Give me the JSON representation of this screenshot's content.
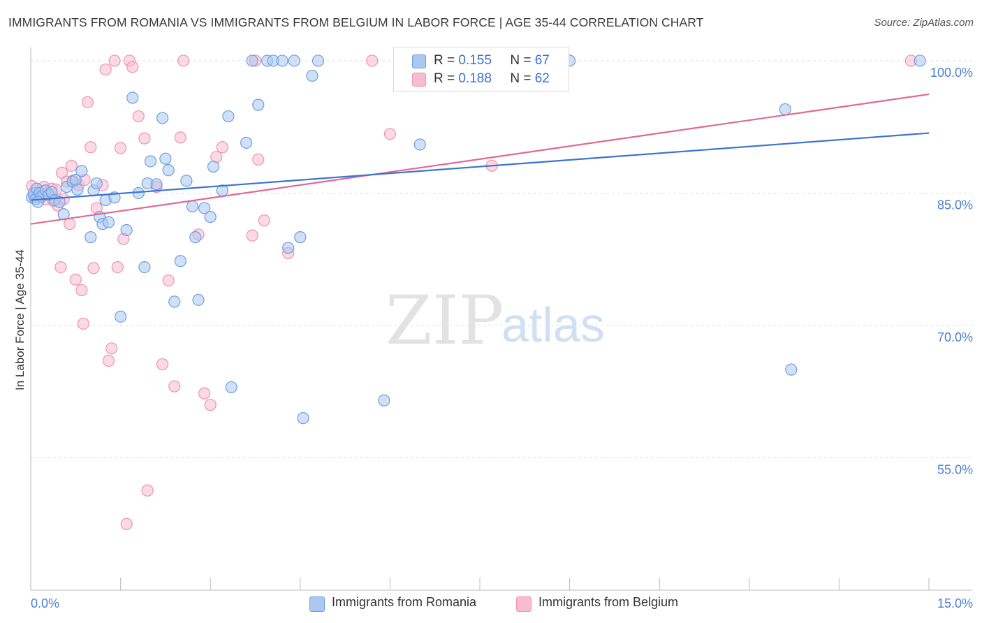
{
  "title": "IMMIGRANTS FROM ROMANIA VS IMMIGRANTS FROM BELGIUM IN LABOR FORCE | AGE 35-44 CORRELATION CHART",
  "source": "Source: ZipAtlas.com",
  "watermark": {
    "zip": "ZIP",
    "atlas": "atlas"
  },
  "legend": {
    "romania": {
      "r_label": "R =",
      "r_value": "0.155",
      "n_label": "N =",
      "n_value": "67"
    },
    "belgium": {
      "r_label": "R =",
      "r_value": "0.188",
      "n_label": "N =",
      "n_value": "62"
    }
  },
  "colors": {
    "romania_fill": "#aac8f0",
    "romania_stroke": "#6d9ee0",
    "romania_line": "#3a74d0",
    "belgium_fill": "#f7bcd0",
    "belgium_stroke": "#ee92b0",
    "belgium_line": "#e06896",
    "tick_text": "#4a7fd0",
    "grid": "#dcdcdc"
  },
  "chart_data": {
    "type": "scatter",
    "title": "IMMIGRANTS FROM ROMANIA VS IMMIGRANTS FROM BELGIUM IN LABOR FORCE | AGE 35-44 CORRELATION CHART",
    "xlabel": "",
    "ylabel": "In Labor Force | Age 35-44",
    "xlim": [
      0,
      15
    ],
    "ylim": [
      40,
      101.5
    ],
    "x_tick_labels": [
      {
        "value": 0,
        "label": "0.0%"
      },
      {
        "value": 15,
        "label": "15.0%"
      }
    ],
    "y_tick_labels": [
      {
        "value": 100,
        "label": "100.0%"
      },
      {
        "value": 85,
        "label": "85.0%"
      },
      {
        "value": 70,
        "label": "70.0%"
      },
      {
        "value": 55,
        "label": "55.0%"
      }
    ],
    "series": [
      {
        "name": "Immigrants from Romania",
        "r": 0.155,
        "n": 67,
        "trend": {
          "x": [
            0,
            15
          ],
          "y": [
            84.2,
            91.8
          ]
        },
        "points": [
          [
            0.02,
            84.5
          ],
          [
            0.05,
            85.0
          ],
          [
            0.08,
            84.3
          ],
          [
            0.1,
            85.5
          ],
          [
            0.15,
            85.0
          ],
          [
            0.18,
            84.6
          ],
          [
            0.25,
            85.3
          ],
          [
            0.3,
            84.8
          ],
          [
            0.35,
            85.1
          ],
          [
            0.4,
            84.2
          ],
          [
            0.48,
            84.0
          ],
          [
            0.55,
            82.6
          ],
          [
            0.6,
            85.7
          ],
          [
            0.7,
            86.3
          ],
          [
            0.75,
            86.5
          ],
          [
            0.78,
            85.4
          ],
          [
            0.85,
            87.5
          ],
          [
            1.0,
            80.0
          ],
          [
            1.05,
            85.3
          ],
          [
            1.1,
            86.1
          ],
          [
            1.15,
            82.3
          ],
          [
            1.2,
            81.5
          ],
          [
            1.25,
            84.2
          ],
          [
            1.3,
            81.7
          ],
          [
            1.4,
            84.5
          ],
          [
            1.5,
            71.0
          ],
          [
            1.6,
            80.8
          ],
          [
            1.7,
            95.8
          ],
          [
            1.8,
            85.0
          ],
          [
            1.9,
            76.6
          ],
          [
            1.95,
            86.1
          ],
          [
            2.0,
            88.6
          ],
          [
            2.1,
            86.0
          ],
          [
            2.2,
            93.5
          ],
          [
            2.25,
            88.9
          ],
          [
            2.3,
            87.6
          ],
          [
            2.4,
            72.7
          ],
          [
            2.5,
            77.3
          ],
          [
            2.6,
            86.4
          ],
          [
            2.7,
            83.5
          ],
          [
            2.75,
            80.0
          ],
          [
            2.8,
            72.9
          ],
          [
            2.9,
            83.3
          ],
          [
            3.0,
            82.3
          ],
          [
            3.05,
            88.0
          ],
          [
            3.2,
            85.3
          ],
          [
            3.3,
            93.7
          ],
          [
            3.35,
            63.0
          ],
          [
            3.6,
            90.7
          ],
          [
            3.7,
            100.0
          ],
          [
            3.8,
            95.0
          ],
          [
            3.95,
            100.0
          ],
          [
            4.05,
            100.0
          ],
          [
            4.2,
            100.0
          ],
          [
            4.3,
            78.8
          ],
          [
            4.4,
            100.0
          ],
          [
            4.5,
            80.0
          ],
          [
            4.55,
            59.5
          ],
          [
            4.7,
            98.3
          ],
          [
            4.8,
            100.0
          ],
          [
            5.9,
            61.5
          ],
          [
            6.5,
            90.5
          ],
          [
            9.0,
            100.0
          ],
          [
            12.6,
            94.5
          ],
          [
            12.7,
            65.0
          ],
          [
            14.85,
            100.0
          ],
          [
            0.12,
            84.0
          ]
        ]
      },
      {
        "name": "Immigrants from Belgium",
        "r": 0.188,
        "n": 62,
        "trend": {
          "x": [
            0,
            15
          ],
          "y": [
            81.5,
            96.2
          ]
        },
        "points": [
          [
            0.02,
            85.8
          ],
          [
            0.05,
            84.7
          ],
          [
            0.08,
            85.0
          ],
          [
            0.12,
            84.5
          ],
          [
            0.2,
            85.2
          ],
          [
            0.22,
            85.7
          ],
          [
            0.25,
            84.3
          ],
          [
            0.3,
            84.8
          ],
          [
            0.35,
            85.5
          ],
          [
            0.38,
            84.1
          ],
          [
            0.42,
            85.4
          ],
          [
            0.45,
            83.6
          ],
          [
            0.5,
            76.6
          ],
          [
            0.52,
            87.3
          ],
          [
            0.6,
            86.3
          ],
          [
            0.65,
            81.5
          ],
          [
            0.68,
            88.1
          ],
          [
            0.7,
            86.4
          ],
          [
            0.75,
            75.2
          ],
          [
            0.8,
            85.9
          ],
          [
            0.85,
            74.0
          ],
          [
            0.88,
            70.2
          ],
          [
            0.9,
            86.5
          ],
          [
            0.95,
            95.3
          ],
          [
            1.0,
            90.2
          ],
          [
            1.05,
            76.5
          ],
          [
            1.1,
            83.3
          ],
          [
            1.2,
            85.9
          ],
          [
            1.25,
            99.0
          ],
          [
            1.3,
            66.0
          ],
          [
            1.35,
            67.4
          ],
          [
            1.4,
            100.0
          ],
          [
            1.45,
            76.6
          ],
          [
            1.5,
            90.1
          ],
          [
            1.55,
            79.8
          ],
          [
            1.6,
            47.5
          ],
          [
            1.65,
            100.0
          ],
          [
            1.7,
            99.3
          ],
          [
            1.8,
            93.7
          ],
          [
            1.9,
            91.2
          ],
          [
            1.95,
            51.3
          ],
          [
            2.1,
            85.7
          ],
          [
            2.2,
            65.6
          ],
          [
            2.3,
            75.1
          ],
          [
            2.4,
            63.1
          ],
          [
            2.5,
            91.3
          ],
          [
            2.55,
            100.0
          ],
          [
            2.8,
            80.3
          ],
          [
            2.9,
            62.3
          ],
          [
            3.0,
            61.0
          ],
          [
            3.1,
            89.1
          ],
          [
            3.2,
            90.2
          ],
          [
            3.7,
            80.2
          ],
          [
            3.75,
            100.0
          ],
          [
            3.8,
            88.8
          ],
          [
            3.9,
            81.9
          ],
          [
            4.3,
            78.2
          ],
          [
            6.0,
            91.7
          ],
          [
            7.7,
            88.1
          ],
          [
            14.7,
            100.0
          ],
          [
            5.7,
            100.0
          ],
          [
            0.55,
            84.3
          ]
        ]
      }
    ]
  },
  "bottom_legend": {
    "romania": "Immigrants from Romania",
    "belgium": "Immigrants from Belgium"
  }
}
